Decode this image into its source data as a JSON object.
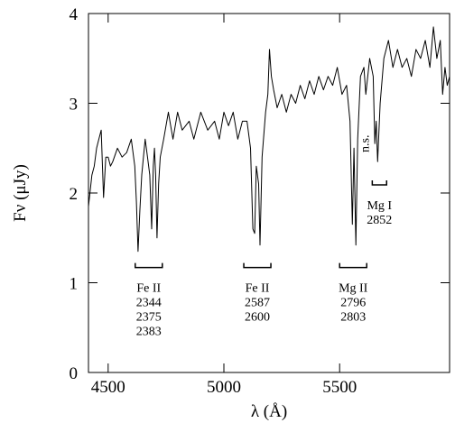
{
  "chart_data": {
    "type": "line",
    "xlabel": "λ (Å)",
    "ylabel": "Fν (μJy)",
    "xlim": [
      4415,
      5975
    ],
    "ylim": [
      0,
      4
    ],
    "xticks": [
      4500,
      5000,
      5500
    ],
    "yticks": [
      0,
      1,
      2,
      3,
      4
    ],
    "series": [
      {
        "color": "#000000",
        "x": [
          4415,
          4430,
          4440,
          4450,
          4460,
          4470,
          4480,
          4490,
          4500,
          4510,
          4520,
          4540,
          4560,
          4580,
          4600,
          4615,
          4622,
          4629,
          4637,
          4645,
          4660,
          4670,
          4680,
          4688,
          4695,
          4700,
          4705,
          4711,
          4718,
          4725,
          4740,
          4760,
          4780,
          4800,
          4820,
          4850,
          4870,
          4900,
          4930,
          4960,
          4980,
          5000,
          5020,
          5040,
          5060,
          5080,
          5100,
          5115,
          5125,
          5133,
          5140,
          5150,
          5156,
          5165,
          5180,
          5190,
          5197,
          5205,
          5215,
          5230,
          5250,
          5270,
          5290,
          5310,
          5330,
          5350,
          5370,
          5390,
          5410,
          5430,
          5450,
          5470,
          5490,
          5510,
          5530,
          5545,
          5555,
          5562,
          5570,
          5578,
          5590,
          5605,
          5613,
          5630,
          5645,
          5652,
          5658,
          5664,
          5675,
          5691,
          5711,
          5730,
          5750,
          5770,
          5790,
          5810,
          5830,
          5850,
          5870,
          5890,
          5905,
          5920,
          5935,
          5945,
          5955,
          5965,
          5975
        ],
        "values": [
          1.85,
          2.2,
          2.3,
          2.5,
          2.6,
          2.7,
          1.95,
          2.4,
          2.4,
          2.3,
          2.35,
          2.5,
          2.4,
          2.45,
          2.6,
          2.3,
          1.9,
          1.35,
          1.8,
          2.2,
          2.6,
          2.4,
          2.2,
          1.6,
          2.3,
          2.5,
          2.2,
          1.5,
          2.1,
          2.4,
          2.6,
          2.9,
          2.6,
          2.9,
          2.7,
          2.8,
          2.6,
          2.9,
          2.7,
          2.8,
          2.6,
          2.9,
          2.75,
          2.9,
          2.6,
          2.8,
          2.8,
          2.5,
          1.6,
          1.55,
          2.3,
          2.1,
          1.42,
          2.4,
          2.9,
          3.1,
          3.6,
          3.3,
          3.15,
          2.95,
          3.1,
          2.9,
          3.1,
          3.0,
          3.2,
          3.05,
          3.25,
          3.1,
          3.3,
          3.15,
          3.3,
          3.2,
          3.4,
          3.1,
          3.2,
          2.8,
          1.65,
          2.5,
          1.42,
          2.6,
          3.3,
          3.4,
          3.1,
          3.5,
          3.3,
          2.55,
          2.8,
          2.35,
          3.0,
          3.5,
          3.7,
          3.4,
          3.6,
          3.4,
          3.5,
          3.3,
          3.6,
          3.5,
          3.7,
          3.4,
          3.85,
          3.5,
          3.7,
          3.1,
          3.4,
          3.2,
          3.3
        ]
      }
    ],
    "annotations": [
      {
        "lines": [
          "Fe II",
          "2344",
          "2375",
          "2383"
        ],
        "x": [
          4617,
          4734
        ],
        "y": 1.17
      },
      {
        "lines": [
          "Fe II",
          "2587",
          "2600"
        ],
        "x": [
          5086,
          5203
        ],
        "y": 1.17
      },
      {
        "lines": [
          "Mg II",
          "2796",
          "2803"
        ],
        "x": [
          5500,
          5617
        ],
        "y": 1.17
      },
      {
        "lines": [
          "Mg I",
          "2852"
        ],
        "x": [
          5641,
          5703
        ],
        "y": 2.09
      }
    ],
    "notes": [
      {
        "text": "n.s.",
        "x": 5625,
        "y": 2.55,
        "rotate": true
      }
    ]
  }
}
